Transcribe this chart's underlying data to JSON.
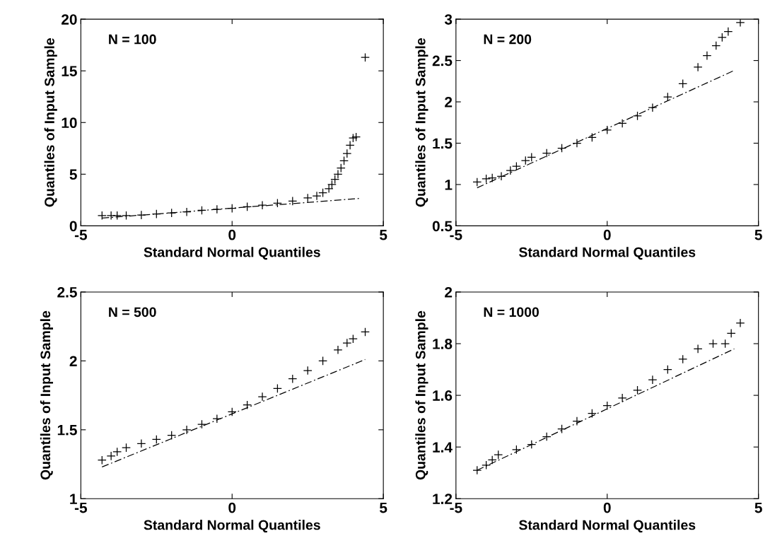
{
  "chart_data": [
    {
      "type": "scatter",
      "xlabel": "Standard Normal Quantiles",
      "ylabel": "Quantiles of Input Sample",
      "annotations": [
        "N = 100"
      ],
      "xlim": [
        -5,
        5
      ],
      "xticks": [
        -5,
        0,
        5
      ],
      "ylim": [
        0,
        20
      ],
      "yticks": [
        0,
        5,
        10,
        15,
        20
      ],
      "grid": false,
      "series": [
        {
          "marker": "cross",
          "color": "#000000",
          "x": [
            -4.3,
            -4.0,
            -3.8,
            -3.5,
            -3,
            -2.5,
            -2,
            -1.5,
            -1,
            -0.5,
            0,
            0.5,
            1,
            1.5,
            2,
            2.5,
            2.8,
            3.0,
            3.2,
            3.3,
            3.4,
            3.5,
            3.6,
            3.7,
            3.8,
            3.9,
            4.0,
            4.1,
            4.4
          ],
          "values": [
            1.0,
            1.0,
            1.0,
            1.0,
            1.05,
            1.15,
            1.25,
            1.35,
            1.5,
            1.6,
            1.7,
            1.85,
            2.0,
            2.2,
            2.4,
            2.7,
            2.9,
            3.2,
            3.6,
            4.0,
            4.5,
            5.0,
            5.6,
            6.3,
            7.0,
            7.8,
            8.5,
            8.6,
            16.3
          ]
        },
        {
          "type": "line",
          "line_style": "dashed",
          "color": "#000000",
          "x": [
            -4.3,
            4.2
          ],
          "values": [
            0.75,
            2.65
          ]
        }
      ]
    },
    {
      "type": "scatter",
      "xlabel": "Standard Normal Quantiles",
      "ylabel": "Quantiles of Input Sample",
      "annotations": [
        "N = 200"
      ],
      "xlim": [
        -5,
        5
      ],
      "xticks": [
        -5,
        0,
        5
      ],
      "ylim": [
        0.5,
        3
      ],
      "yticks": [
        0.5,
        1,
        1.5,
        2,
        2.5,
        3
      ],
      "grid": false,
      "series": [
        {
          "marker": "cross",
          "color": "#000000",
          "x": [
            -4.3,
            -4.0,
            -3.8,
            -3.5,
            -3.2,
            -3,
            -2.7,
            -2.5,
            -2,
            -1.5,
            -1,
            -0.5,
            0,
            0.5,
            1,
            1.5,
            2,
            2.5,
            3,
            3.3,
            3.6,
            3.8,
            4.0,
            4.4
          ],
          "values": [
            1.03,
            1.07,
            1.08,
            1.1,
            1.17,
            1.22,
            1.29,
            1.33,
            1.38,
            1.44,
            1.5,
            1.57,
            1.66,
            1.74,
            1.83,
            1.93,
            2.06,
            2.22,
            2.42,
            2.56,
            2.68,
            2.78,
            2.85,
            2.96
          ]
        },
        {
          "type": "line",
          "line_style": "dashed",
          "color": "#000000",
          "x": [
            -4.3,
            4.2
          ],
          "values": [
            0.96,
            2.38
          ]
        }
      ]
    },
    {
      "type": "scatter",
      "xlabel": "Standard Normal Quantiles",
      "ylabel": "Quantiles of Input Sample",
      "annotations": [
        "N = 500"
      ],
      "xlim": [
        -5,
        5
      ],
      "xticks": [
        -5,
        0,
        5
      ],
      "ylim": [
        1,
        2.5
      ],
      "yticks": [
        1,
        1.5,
        2,
        2.5
      ],
      "grid": false,
      "series": [
        {
          "marker": "cross",
          "color": "#000000",
          "x": [
            -4.3,
            -4.0,
            -3.8,
            -3.5,
            -3,
            -2.5,
            -2,
            -1.5,
            -1,
            -0.5,
            0,
            0.5,
            1,
            1.5,
            2,
            2.5,
            3,
            3.5,
            3.8,
            4.0,
            4.4
          ],
          "values": [
            1.28,
            1.31,
            1.34,
            1.37,
            1.4,
            1.43,
            1.46,
            1.5,
            1.54,
            1.58,
            1.63,
            1.68,
            1.74,
            1.8,
            1.87,
            1.93,
            2.0,
            2.08,
            2.13,
            2.16,
            2.21
          ]
        },
        {
          "type": "line",
          "line_style": "dashed",
          "color": "#000000",
          "x": [
            -4.3,
            4.4
          ],
          "values": [
            1.23,
            2.01
          ]
        }
      ]
    },
    {
      "type": "scatter",
      "xlabel": "Standard Normal Quantiles",
      "ylabel": "Quantiles of Input Sample",
      "annotations": [
        "N = 1000"
      ],
      "xlim": [
        -5,
        5
      ],
      "xticks": [
        -5,
        0,
        5
      ],
      "ylim": [
        1.2,
        2
      ],
      "yticks": [
        1.2,
        1.4,
        1.6,
        1.8,
        2
      ],
      "grid": false,
      "series": [
        {
          "marker": "cross",
          "color": "#000000",
          "x": [
            -4.3,
            -4.0,
            -3.8,
            -3.6,
            -3,
            -2.5,
            -2,
            -1.5,
            -1,
            -0.5,
            0,
            0.5,
            1,
            1.5,
            2,
            2.5,
            3,
            3.5,
            3.9,
            4.1,
            4.4
          ],
          "values": [
            1.31,
            1.33,
            1.35,
            1.37,
            1.39,
            1.41,
            1.44,
            1.47,
            1.5,
            1.53,
            1.56,
            1.59,
            1.62,
            1.66,
            1.7,
            1.74,
            1.78,
            1.8,
            1.8,
            1.84,
            1.88
          ]
        },
        {
          "type": "line",
          "line_style": "dashed",
          "color": "#000000",
          "x": [
            -4.3,
            4.2
          ],
          "values": [
            1.31,
            1.78
          ]
        }
      ]
    }
  ]
}
